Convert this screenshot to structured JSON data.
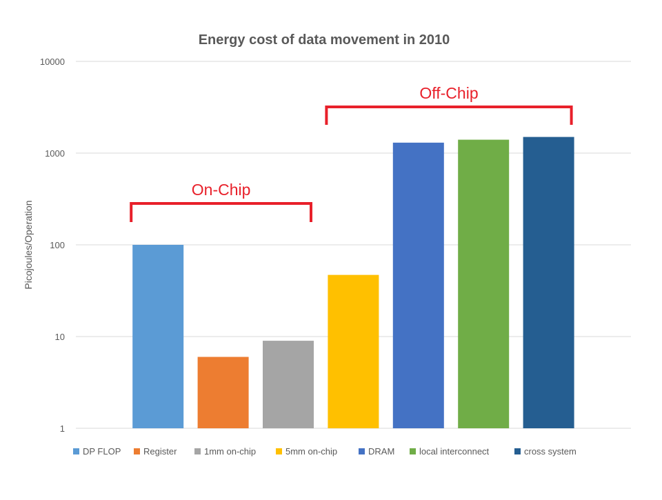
{
  "chart_data": {
    "type": "bar",
    "title": "Energy cost of data movement in 2010",
    "ylabel": "Picojoules/Operation",
    "xlabel": "",
    "yscale": "log",
    "ylim": [
      1,
      10000
    ],
    "yticks": [
      "1",
      "10",
      "100",
      "1000",
      "10000"
    ],
    "grid": true,
    "legend_position": "bottom",
    "series": [
      {
        "name": "DP FLOP",
        "value": 100,
        "color": "#5b9bd5"
      },
      {
        "name": "Register",
        "value": 6,
        "color": "#ed7d31"
      },
      {
        "name": "1mm on-chip",
        "value": 9,
        "color": "#a5a5a5"
      },
      {
        "name": "5mm on-chip",
        "value": 47,
        "color": "#ffc000"
      },
      {
        "name": "DRAM",
        "value": 1300,
        "color": "#4472c4"
      },
      {
        "name": "local interconnect",
        "value": 1400,
        "color": "#70ad47"
      },
      {
        "name": "cross system",
        "value": 1500,
        "color": "#255e91"
      }
    ],
    "annotations": [
      {
        "text": "On-Chip",
        "spans": [
          "DP FLOP",
          "1mm on-chip"
        ],
        "color": "#e8202a"
      },
      {
        "text": "Off-Chip",
        "spans": [
          "5mm on-chip",
          "cross system"
        ],
        "color": "#e8202a"
      }
    ]
  }
}
